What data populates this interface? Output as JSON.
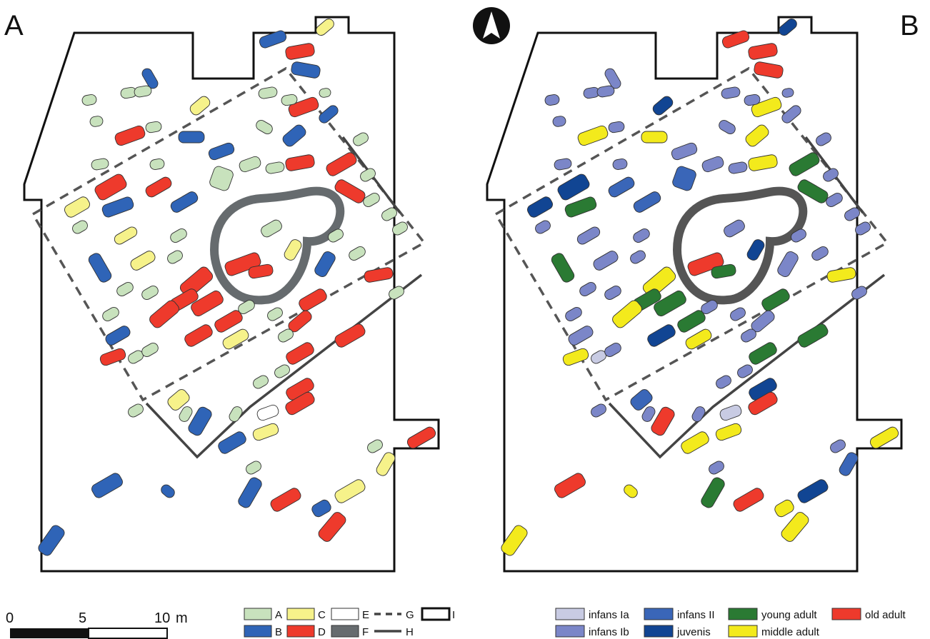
{
  "panels": {
    "left_letter": "A",
    "right_letter": "B"
  },
  "scale_bar": {
    "tick_0": "0",
    "tick_5": "5",
    "tick_10": "10",
    "unit": "m"
  },
  "legend_left": {
    "A": {
      "label": "A",
      "color": "#c8e2bd"
    },
    "B": {
      "label": "B",
      "color": "#2f64b7"
    },
    "C": {
      "label": "C",
      "color": "#f6f28a"
    },
    "D": {
      "label": "D",
      "color": "#ee3a2c"
    },
    "E": {
      "label": "E",
      "color": "#ffffff"
    },
    "F": {
      "label": "F",
      "color": "#666b6e"
    },
    "G": {
      "label": "G"
    },
    "H": {
      "label": "H"
    },
    "I": {
      "label": "I"
    }
  },
  "legend_right": {
    "infans_1a": {
      "label": "infans Ia",
      "color": "#c8cbe3"
    },
    "infans_1b": {
      "label": "infans Ib",
      "color": "#7b86c8"
    },
    "infans_2": {
      "label": "infans II",
      "color": "#3a66b8"
    },
    "juvenis": {
      "label": "juvenis",
      "color": "#114593"
    },
    "young_adult": {
      "label": "young adult",
      "color": "#2a7a33"
    },
    "middle_adult": {
      "label": "middle adult",
      "color": "#f3ea1c"
    },
    "old_adult": {
      "label": "old adult",
      "color": "#ee3a2c"
    }
  },
  "colors": {
    "outline": "#111111",
    "ring": "#666b6e",
    "trench": "#555555"
  }
}
